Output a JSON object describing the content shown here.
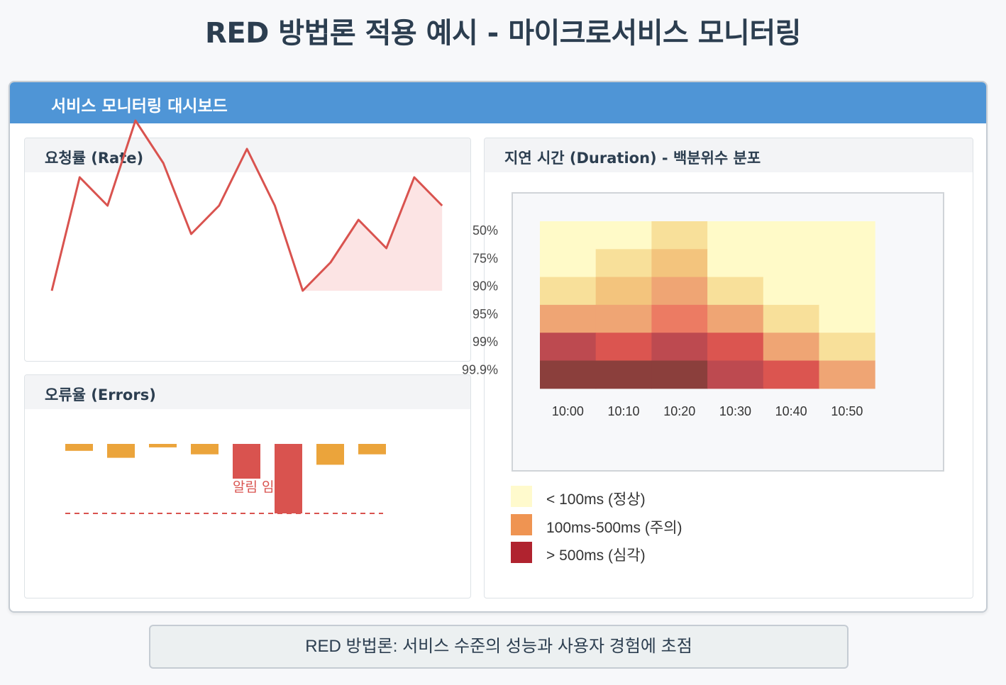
{
  "page": {
    "title": "RED 방법론 적용 예시 - 마이크로서비스 모니터링"
  },
  "dashboard": {
    "header": "서비스 모니터링 대시보드"
  },
  "panels": {
    "rate": {
      "title": "요청률 (Rate)"
    },
    "errors": {
      "title": "오류율 (Errors)",
      "threshold_label": "알림 임계값"
    },
    "duration": {
      "title": "지연 시간 (Duration) - 백분위수 분포"
    }
  },
  "chart_data": [
    {
      "type": "line",
      "title": "요청률 (Rate)",
      "x": [
        0,
        1,
        2,
        3,
        4,
        5,
        6,
        7,
        8,
        9,
        10,
        11,
        12,
        13,
        14
      ],
      "values": [
        30,
        70,
        60,
        90,
        75,
        50,
        60,
        80,
        60,
        30,
        40,
        55,
        45,
        70,
        60
      ],
      "ylim": [
        0,
        100
      ],
      "highlight_area_from_index": 9,
      "colors": {
        "line": "#d9534f",
        "area": "#fce4e4"
      }
    },
    {
      "type": "bar",
      "title": "오류율 (Errors)",
      "values": [
        0.1,
        0.2,
        0.05,
        0.15,
        0.5,
        1.0,
        0.3,
        0.15
      ],
      "threshold": 1.0,
      "threshold_label": "알림 임계값",
      "exceeds_color": "#d9534f",
      "normal_color": "#eba43b",
      "alert_threshold_for_red": 0.5
    },
    {
      "type": "heatmap",
      "title": "지연 시간 (Duration) - 백분위수 분포",
      "x": [
        "10:00",
        "10:10",
        "10:20",
        "10:30",
        "10:40",
        "10:50"
      ],
      "y": [
        "50%",
        "75%",
        "90%",
        "95%",
        "99%",
        "99.9%"
      ],
      "level_colors": [
        "#fffac8",
        "#f8e09a",
        "#f3c47d",
        "#efa574",
        "#ec7b63",
        "#db5550",
        "#bd4a50",
        "#8b3f3c"
      ],
      "levels": [
        [
          0,
          0,
          1,
          0,
          0,
          0
        ],
        [
          0,
          1,
          2,
          0,
          0,
          0
        ],
        [
          1,
          2,
          3,
          1,
          0,
          0
        ],
        [
          3,
          3,
          4,
          3,
          1,
          0
        ],
        [
          6,
          5,
          6,
          5,
          3,
          1
        ],
        [
          7,
          7,
          7,
          6,
          5,
          3
        ]
      ],
      "legend": [
        {
          "label": "< 100ms (정상)",
          "color": "#fffacd"
        },
        {
          "label": "100ms-500ms (주의)",
          "color": "#ef9452"
        },
        {
          "label": "> 500ms (심각)",
          "color": "#b0232f"
        }
      ]
    }
  ],
  "footer": {
    "text": "RED 방법론: 서비스 수준의 성능과 사용자 경험에 초점"
  }
}
